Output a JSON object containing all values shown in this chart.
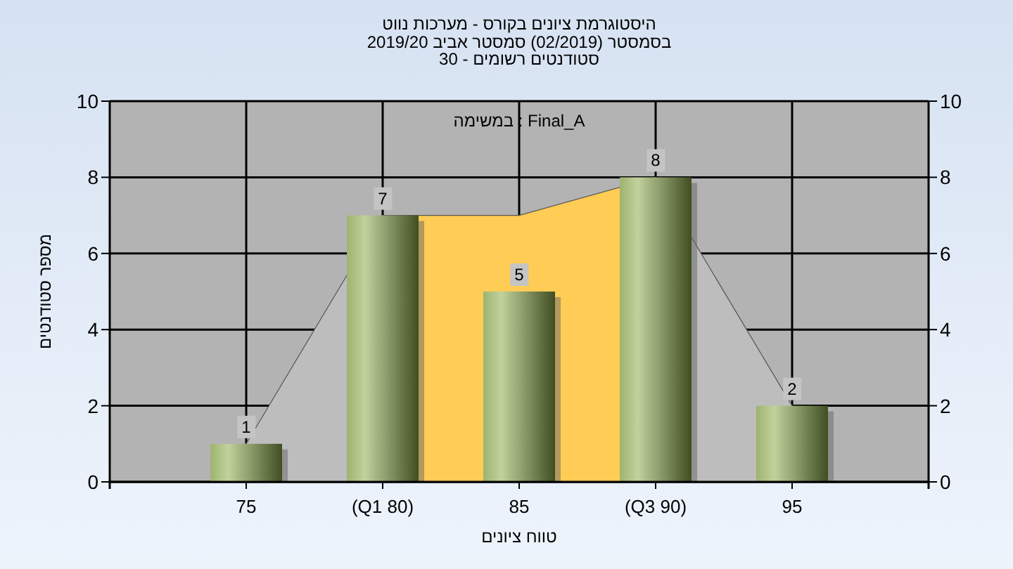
{
  "chart_data": {
    "type": "bar",
    "title": "היסטוגרמת ציונים בקורס - מערכות נווט",
    "subtitle": [
      "בסמסטר  (02/2019)  סמסטר אביב 2019/20",
      "סטודנטים רשומים - 30"
    ],
    "xlabel": "טווח ציונים",
    "ylabel": "מספר סטודנטים",
    "annotations": [
      "במשימה : Final_A"
    ],
    "categories": [
      "75",
      "(Q1 80)",
      "85",
      "(Q3 90)",
      "95"
    ],
    "series": [
      {
        "type": "area",
        "color": "#bdbdbd",
        "values": [
          1,
          7,
          null,
          8,
          2
        ]
      },
      {
        "type": "area",
        "color": "#ffcc55",
        "values": [
          null,
          7,
          7,
          8,
          null
        ]
      },
      {
        "color": "#8fae4c",
        "values": [
          1,
          7,
          5,
          8,
          2
        ],
        "value_labels": [
          "1",
          "7",
          "5",
          "8",
          "2"
        ]
      }
    ],
    "ylim": [
      0,
      10
    ],
    "yticks": [
      0,
      2,
      4,
      6,
      8,
      10
    ],
    "y2lim": [
      0,
      10
    ],
    "y2ticks": [
      0,
      2,
      4,
      6,
      8,
      10
    ],
    "grid": true
  }
}
